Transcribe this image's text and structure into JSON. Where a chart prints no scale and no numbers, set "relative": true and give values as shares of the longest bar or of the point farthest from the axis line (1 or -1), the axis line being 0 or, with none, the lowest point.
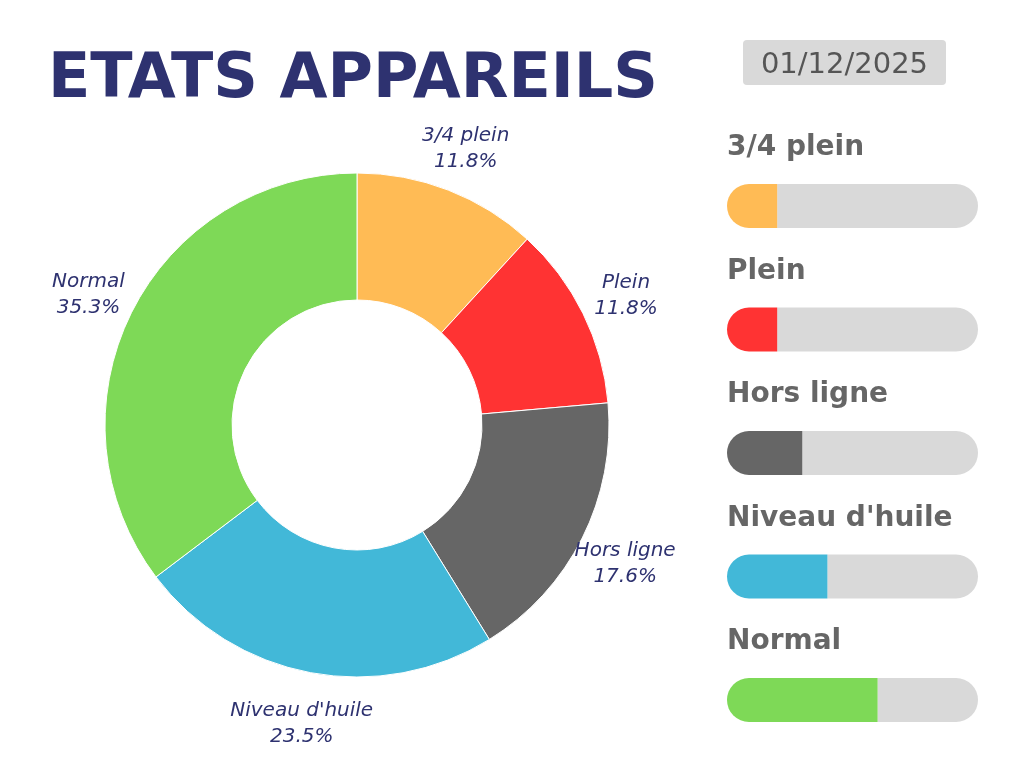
{
  "chart_data": [
    {
      "type": "donut",
      "title": "ETATS APPAREILS",
      "categories": [
        "3/4 plein",
        "Plein",
        "Hors ligne",
        "Niveau d'huile",
        "Normal"
      ],
      "values": [
        11.8,
        11.8,
        17.6,
        23.5,
        35.3
      ],
      "colors": [
        "#ffbb55",
        "#ff3333",
        "#666666",
        "#42b8d8",
        "#7ed957"
      ],
      "value_labels": [
        "11.8%",
        "11.8%",
        "17.6%",
        "23.5%",
        "35.3%"
      ]
    },
    {
      "type": "bar",
      "orientation": "horizontal",
      "stacked": true,
      "relative": true,
      "categories": [
        "3/4 plein",
        "Plein",
        "Hors ligne",
        "Niveau d'huile",
        "Normal"
      ],
      "annotations": [
        "01/12/2025"
      ],
      "series": [
        {
          "colors": [
            "#ffbb55",
            "#ff3333",
            "#666666",
            "#42b8d8",
            "#7ed957"
          ],
          "values": [
            0.2,
            0.2,
            0.3,
            0.4,
            0.6
          ]
        },
        {
          "color": "#d9d9d9",
          "values": [
            0.8,
            0.8,
            0.7,
            0.6,
            0.4
          ]
        }
      ]
    }
  ]
}
